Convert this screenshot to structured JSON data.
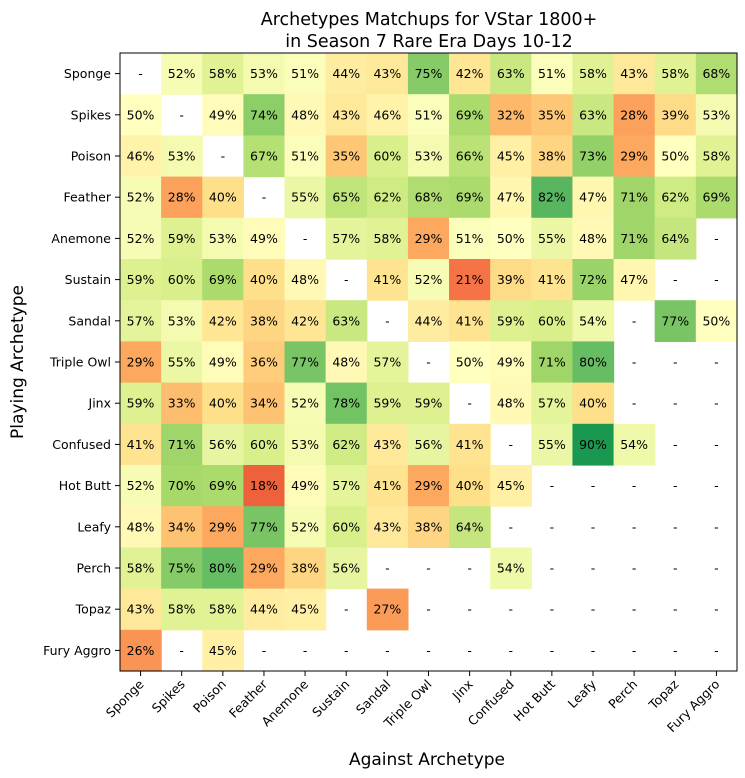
{
  "chart_data": {
    "type": "heatmap",
    "title": [
      "Archetypes Matchups for VStar 1800+",
      "in Season 7 Rare Era Days 10-12"
    ],
    "xlabel": "Against Archetype",
    "ylabel": "Playing Archetype",
    "rows": [
      "Sponge",
      "Spikes",
      "Poison",
      "Feather",
      "Anemone",
      "Sustain",
      "Sandal",
      "Triple Owl",
      "Jinx",
      "Confused",
      "Hot Butt",
      "Leafy",
      "Perch",
      "Topaz",
      "Fury Aggro"
    ],
    "cols": [
      "Sponge",
      "Spikes",
      "Poison",
      "Feather",
      "Anemone",
      "Sustain",
      "Sandal",
      "Triple Owl",
      "Jinx",
      "Confused",
      "Hot Butt",
      "Leafy",
      "Perch",
      "Topaz",
      "Fury Aggro"
    ],
    "empty_label": "-",
    "value_suffix": "%",
    "color_scale": {
      "type": "RdYlGn",
      "vmin": 0,
      "vmax": 100
    },
    "values": [
      [
        null,
        52,
        58,
        53,
        51,
        44,
        43,
        75,
        42,
        63,
        51,
        58,
        43,
        58,
        68
      ],
      [
        50,
        null,
        49,
        74,
        48,
        43,
        46,
        51,
        69,
        32,
        35,
        63,
        28,
        39,
        53
      ],
      [
        46,
        53,
        null,
        67,
        51,
        35,
        60,
        53,
        66,
        45,
        38,
        73,
        29,
        50,
        58
      ],
      [
        52,
        28,
        40,
        null,
        55,
        65,
        62,
        68,
        69,
        47,
        82,
        47,
        71,
        62,
        69
      ],
      [
        52,
        59,
        53,
        49,
        null,
        57,
        58,
        29,
        51,
        50,
        55,
        48,
        71,
        64,
        null
      ],
      [
        59,
        60,
        69,
        40,
        48,
        null,
        41,
        52,
        21,
        39,
        41,
        72,
        47,
        null,
        null
      ],
      [
        57,
        53,
        42,
        38,
        42,
        63,
        null,
        44,
        41,
        59,
        60,
        54,
        null,
        77,
        50
      ],
      [
        29,
        55,
        49,
        36,
        77,
        48,
        57,
        null,
        50,
        49,
        71,
        80,
        null,
        null,
        null
      ],
      [
        59,
        33,
        40,
        34,
        52,
        78,
        59,
        59,
        null,
        48,
        57,
        40,
        null,
        null,
        null
      ],
      [
        41,
        71,
        56,
        60,
        53,
        62,
        43,
        56,
        41,
        null,
        55,
        90,
        54,
        null,
        null
      ],
      [
        52,
        70,
        69,
        18,
        49,
        57,
        41,
        29,
        40,
        45,
        null,
        null,
        null,
        null,
        null
      ],
      [
        48,
        34,
        29,
        77,
        52,
        60,
        43,
        38,
        64,
        null,
        null,
        null,
        null,
        null,
        null
      ],
      [
        58,
        75,
        80,
        29,
        38,
        56,
        null,
        null,
        null,
        54,
        null,
        null,
        null,
        null,
        null
      ],
      [
        43,
        58,
        58,
        44,
        45,
        null,
        27,
        null,
        null,
        null,
        null,
        null,
        null,
        null,
        null
      ],
      [
        26,
        null,
        45,
        null,
        null,
        null,
        null,
        null,
        null,
        null,
        null,
        null,
        null,
        null,
        null
      ]
    ]
  }
}
